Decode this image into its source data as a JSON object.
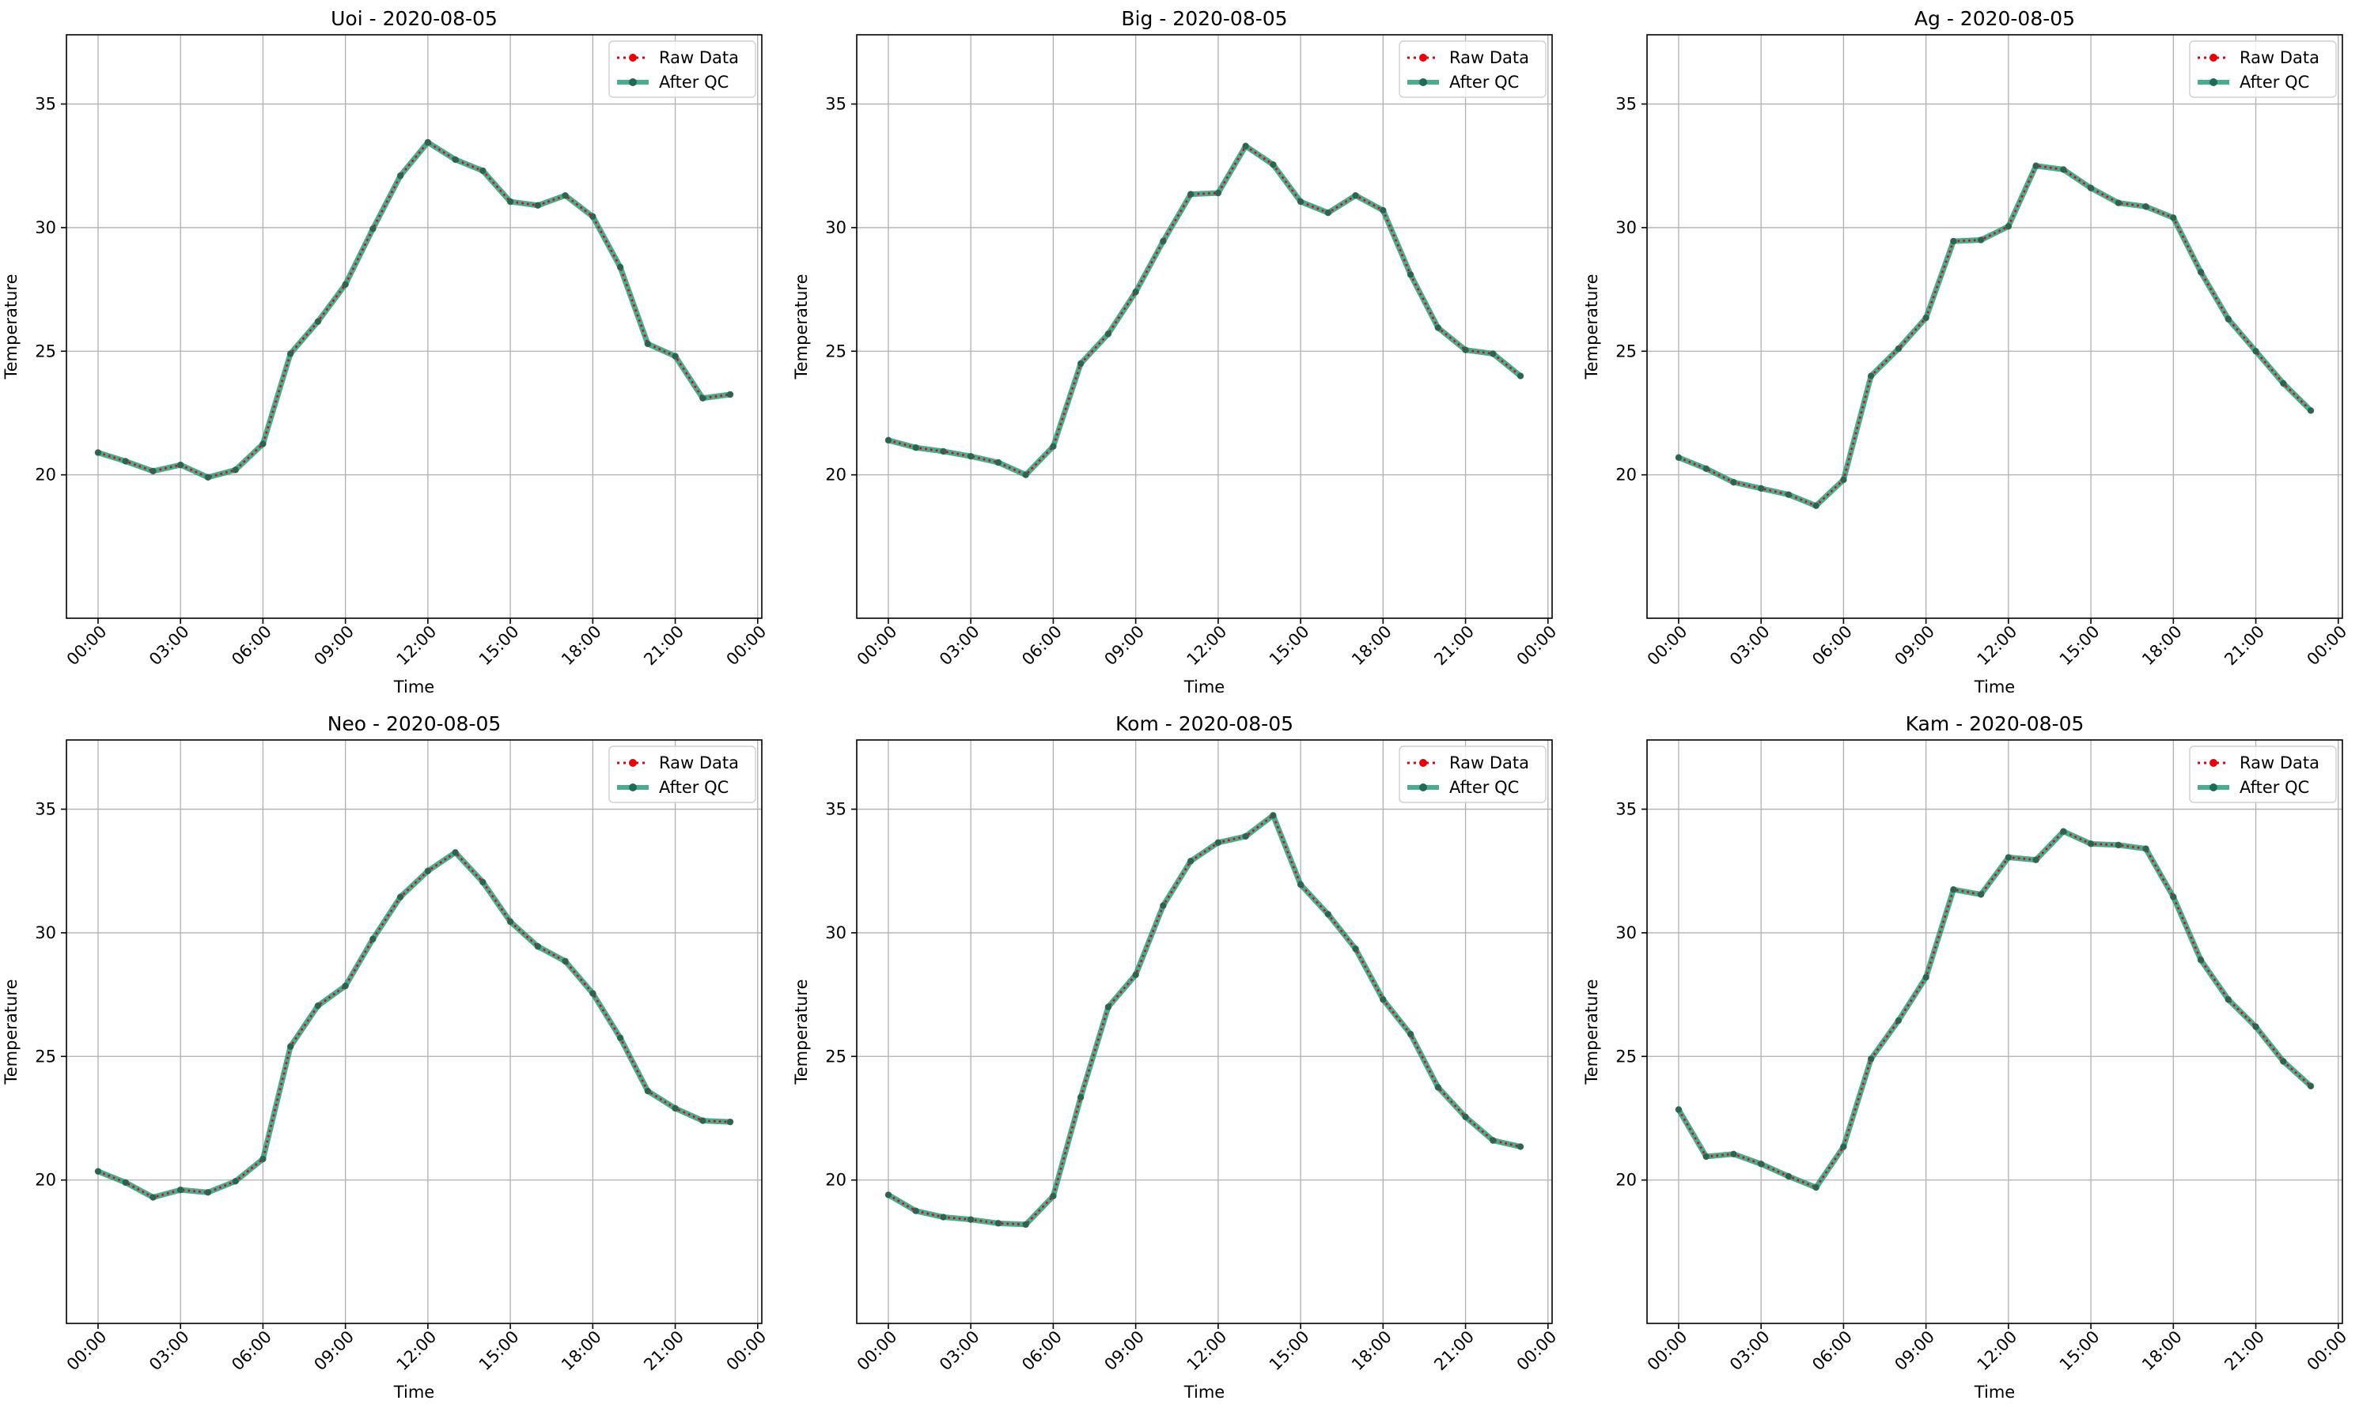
{
  "colors": {
    "raw": "#e8000b",
    "qc": "#1a9773",
    "grid": "#b0b0b0",
    "frame": "#000000"
  },
  "axes_common": {
    "ylim": [
      14.2,
      37.8
    ],
    "yticks": [
      20,
      25,
      30,
      35
    ],
    "xlim": [
      -1.15,
      24.15
    ],
    "xticks_hours": [
      0,
      3,
      6,
      9,
      12,
      15,
      18,
      21,
      24
    ],
    "xtick_labels": [
      "00:00",
      "03:00",
      "06:00",
      "09:00",
      "12:00",
      "15:00",
      "18:00",
      "21:00",
      "00:00"
    ],
    "grid": true,
    "legend_position": "upper right"
  },
  "chart_data": [
    {
      "type": "line",
      "title": "Uoi - 2020-08-05",
      "xlabel": "Time",
      "ylabel": "Temperature",
      "x": [
        "00:00",
        "01:00",
        "02:00",
        "03:00",
        "04:00",
        "05:00",
        "06:00",
        "07:00",
        "08:00",
        "09:00",
        "10:00",
        "11:00",
        "12:00",
        "13:00",
        "14:00",
        "15:00",
        "16:00",
        "17:00",
        "18:00",
        "19:00",
        "20:00",
        "21:00",
        "22:00",
        "23:00"
      ],
      "series": [
        {
          "name": "Raw Data",
          "values": [
            20.9,
            20.55,
            20.15,
            20.4,
            19.9,
            20.2,
            21.25,
            24.9,
            26.2,
            27.7,
            29.95,
            32.1,
            33.45,
            32.75,
            32.3,
            31.05,
            30.9,
            31.3,
            30.45,
            28.4,
            25.3,
            24.8,
            23.1,
            23.25
          ]
        },
        {
          "name": "After QC",
          "values": [
            20.9,
            20.55,
            20.15,
            20.4,
            19.9,
            20.2,
            21.25,
            24.9,
            26.2,
            27.7,
            29.95,
            32.1,
            33.45,
            32.75,
            32.3,
            31.05,
            30.9,
            31.3,
            30.45,
            28.4,
            25.3,
            24.8,
            23.1,
            23.25
          ]
        }
      ]
    },
    {
      "type": "line",
      "title": "Big - 2020-08-05",
      "xlabel": "Time",
      "ylabel": "Temperature",
      "x": [
        "00:00",
        "01:00",
        "02:00",
        "03:00",
        "04:00",
        "05:00",
        "06:00",
        "07:00",
        "08:00",
        "09:00",
        "10:00",
        "11:00",
        "12:00",
        "13:00",
        "14:00",
        "15:00",
        "16:00",
        "17:00",
        "18:00",
        "19:00",
        "20:00",
        "21:00",
        "22:00",
        "23:00"
      ],
      "series": [
        {
          "name": "Raw Data",
          "values": [
            21.4,
            21.1,
            20.95,
            20.75,
            20.5,
            20.0,
            21.15,
            24.5,
            25.7,
            27.4,
            29.45,
            31.35,
            31.4,
            33.3,
            32.55,
            31.05,
            30.6,
            31.3,
            30.7,
            28.1,
            25.95,
            25.05,
            24.9,
            24.0
          ]
        },
        {
          "name": "After QC",
          "values": [
            21.4,
            21.1,
            20.95,
            20.75,
            20.5,
            20.0,
            21.15,
            24.5,
            25.7,
            27.4,
            29.45,
            31.35,
            31.4,
            33.3,
            32.55,
            31.05,
            30.6,
            31.3,
            30.7,
            28.1,
            25.95,
            25.05,
            24.9,
            24.0
          ]
        }
      ]
    },
    {
      "type": "line",
      "title": "Ag - 2020-08-05",
      "xlabel": "Time",
      "ylabel": "Temperature",
      "x": [
        "00:00",
        "01:00",
        "02:00",
        "03:00",
        "04:00",
        "05:00",
        "06:00",
        "07:00",
        "08:00",
        "09:00",
        "10:00",
        "11:00",
        "12:00",
        "13:00",
        "14:00",
        "15:00",
        "16:00",
        "17:00",
        "18:00",
        "19:00",
        "20:00",
        "21:00",
        "22:00",
        "23:00"
      ],
      "series": [
        {
          "name": "Raw Data",
          "values": [
            20.7,
            20.25,
            19.7,
            19.45,
            19.2,
            18.75,
            19.8,
            24.0,
            25.1,
            26.35,
            29.45,
            29.5,
            30.05,
            32.5,
            32.35,
            31.6,
            31.0,
            30.85,
            30.4,
            28.2,
            26.3,
            25.0,
            23.7,
            22.6
          ]
        },
        {
          "name": "After QC",
          "values": [
            20.7,
            20.25,
            19.7,
            19.45,
            19.2,
            18.75,
            19.8,
            24.0,
            25.1,
            26.35,
            29.45,
            29.5,
            30.05,
            32.5,
            32.35,
            31.6,
            31.0,
            30.85,
            30.4,
            28.2,
            26.3,
            25.0,
            23.7,
            22.6
          ]
        }
      ]
    },
    {
      "type": "line",
      "title": "Neo - 2020-08-05",
      "xlabel": "Time",
      "ylabel": "Temperature",
      "x": [
        "00:00",
        "01:00",
        "02:00",
        "03:00",
        "04:00",
        "05:00",
        "06:00",
        "07:00",
        "08:00",
        "09:00",
        "10:00",
        "11:00",
        "12:00",
        "13:00",
        "14:00",
        "15:00",
        "16:00",
        "17:00",
        "18:00",
        "19:00",
        "20:00",
        "21:00",
        "22:00",
        "23:00"
      ],
      "series": [
        {
          "name": "Raw Data",
          "values": [
            20.35,
            19.9,
            19.3,
            19.6,
            19.5,
            19.95,
            20.85,
            25.4,
            27.05,
            27.85,
            29.75,
            31.45,
            32.5,
            33.25,
            32.05,
            30.45,
            29.45,
            28.85,
            27.55,
            25.75,
            23.6,
            22.9,
            22.4,
            22.35
          ]
        },
        {
          "name": "After QC",
          "values": [
            20.35,
            19.9,
            19.3,
            19.6,
            19.5,
            19.95,
            20.85,
            25.4,
            27.05,
            27.85,
            29.75,
            31.45,
            32.5,
            33.25,
            32.05,
            30.45,
            29.45,
            28.85,
            27.55,
            25.75,
            23.6,
            22.9,
            22.4,
            22.35
          ]
        }
      ]
    },
    {
      "type": "line",
      "title": "Kom - 2020-08-05",
      "xlabel": "Time",
      "ylabel": "Temperature",
      "x": [
        "00:00",
        "01:00",
        "02:00",
        "03:00",
        "04:00",
        "05:00",
        "06:00",
        "07:00",
        "08:00",
        "09:00",
        "10:00",
        "11:00",
        "12:00",
        "13:00",
        "14:00",
        "15:00",
        "16:00",
        "17:00",
        "18:00",
        "19:00",
        "20:00",
        "21:00",
        "22:00",
        "23:00"
      ],
      "series": [
        {
          "name": "Raw Data",
          "values": [
            19.4,
            18.75,
            18.5,
            18.4,
            18.25,
            18.2,
            19.35,
            23.35,
            27.0,
            28.3,
            31.1,
            32.9,
            33.65,
            33.9,
            34.75,
            31.95,
            30.75,
            29.35,
            27.3,
            25.9,
            23.75,
            22.55,
            21.6,
            21.35
          ]
        },
        {
          "name": "After QC",
          "values": [
            19.4,
            18.75,
            18.5,
            18.4,
            18.25,
            18.2,
            19.35,
            23.35,
            27.0,
            28.3,
            31.1,
            32.9,
            33.65,
            33.9,
            34.75,
            31.95,
            30.75,
            29.35,
            27.3,
            25.9,
            23.75,
            22.55,
            21.6,
            21.35
          ]
        }
      ]
    },
    {
      "type": "line",
      "title": "Kam - 2020-08-05",
      "xlabel": "Time",
      "ylabel": "Temperature",
      "x": [
        "00:00",
        "01:00",
        "02:00",
        "03:00",
        "04:00",
        "05:00",
        "06:00",
        "07:00",
        "08:00",
        "09:00",
        "10:00",
        "11:00",
        "12:00",
        "13:00",
        "14:00",
        "15:00",
        "16:00",
        "17:00",
        "18:00",
        "19:00",
        "20:00",
        "21:00",
        "22:00",
        "23:00"
      ],
      "series": [
        {
          "name": "Raw Data",
          "values": [
            22.85,
            20.95,
            21.05,
            20.65,
            20.15,
            19.7,
            21.35,
            24.9,
            26.45,
            28.2,
            31.75,
            31.55,
            33.05,
            32.95,
            34.1,
            33.6,
            33.55,
            33.4,
            31.45,
            28.9,
            27.3,
            26.2,
            24.8,
            23.8
          ]
        },
        {
          "name": "After QC",
          "values": [
            22.85,
            20.95,
            21.05,
            20.65,
            20.15,
            19.7,
            21.35,
            24.9,
            26.45,
            28.2,
            31.75,
            31.55,
            33.05,
            32.95,
            34.1,
            33.6,
            33.55,
            33.4,
            31.45,
            28.9,
            27.3,
            26.2,
            24.8,
            23.8
          ]
        }
      ]
    }
  ]
}
